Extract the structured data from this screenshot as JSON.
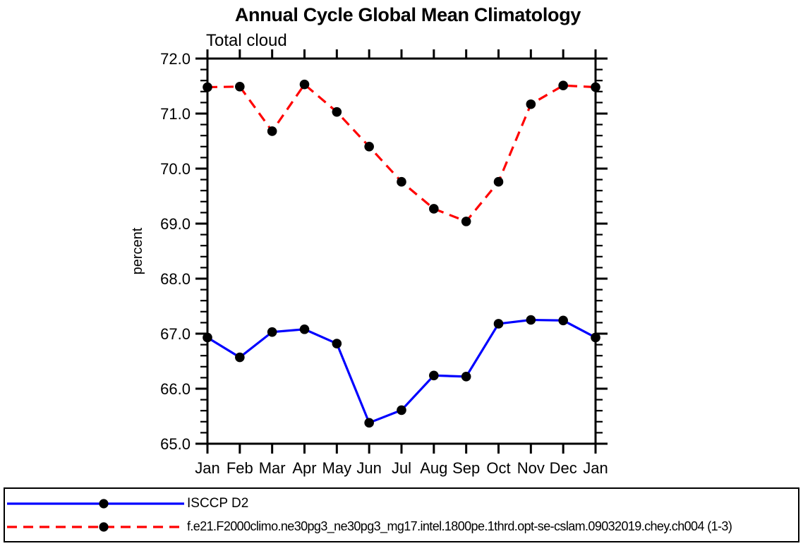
{
  "chart_data": {
    "type": "line",
    "title": "Annual Cycle Global Mean Climatology",
    "subtitle": "Total cloud",
    "xlabel": "",
    "ylabel": "percent",
    "x_labels": [
      "Jan",
      "Feb",
      "Mar",
      "Apr",
      "May",
      "Jun",
      "Jul",
      "Aug",
      "Sep",
      "Oct",
      "Nov",
      "Dec",
      "Jan"
    ],
    "ylim": [
      65.0,
      72.0
    ],
    "y_major_step": 1.0,
    "y_minor_step": 0.2,
    "y_tick_values": [
      65,
      66,
      67,
      68,
      69,
      70,
      71,
      72
    ],
    "y_tick_labels": [
      "65.0",
      "66.0",
      "67.0",
      "68.0",
      "69.0",
      "70.0",
      "71.0",
      "72.0"
    ],
    "grid": false,
    "legend_position": "bottom-box",
    "axis_color": "#000000",
    "marker": "filled-circle",
    "marker_color": "#000000",
    "series": [
      {
        "name": "ISCCP D2",
        "color": "#0000ff",
        "line_style": "solid",
        "values": [
          66.93,
          66.57,
          67.03,
          67.08,
          66.82,
          65.38,
          65.61,
          66.24,
          66.22,
          67.18,
          67.25,
          67.24,
          66.93
        ]
      },
      {
        "name": "f.e21.F2000climo.ne30pg3_ne30pg3_mg17.intel.1800pe.1thrd.opt-se-cslam.09032019.chey.ch004 (1-3)",
        "color": "#ff0000",
        "line_style": "dashed",
        "values": [
          71.48,
          71.49,
          70.68,
          71.53,
          71.03,
          70.4,
          69.76,
          69.27,
          69.04,
          69.76,
          71.17,
          71.51,
          71.48
        ]
      }
    ]
  }
}
